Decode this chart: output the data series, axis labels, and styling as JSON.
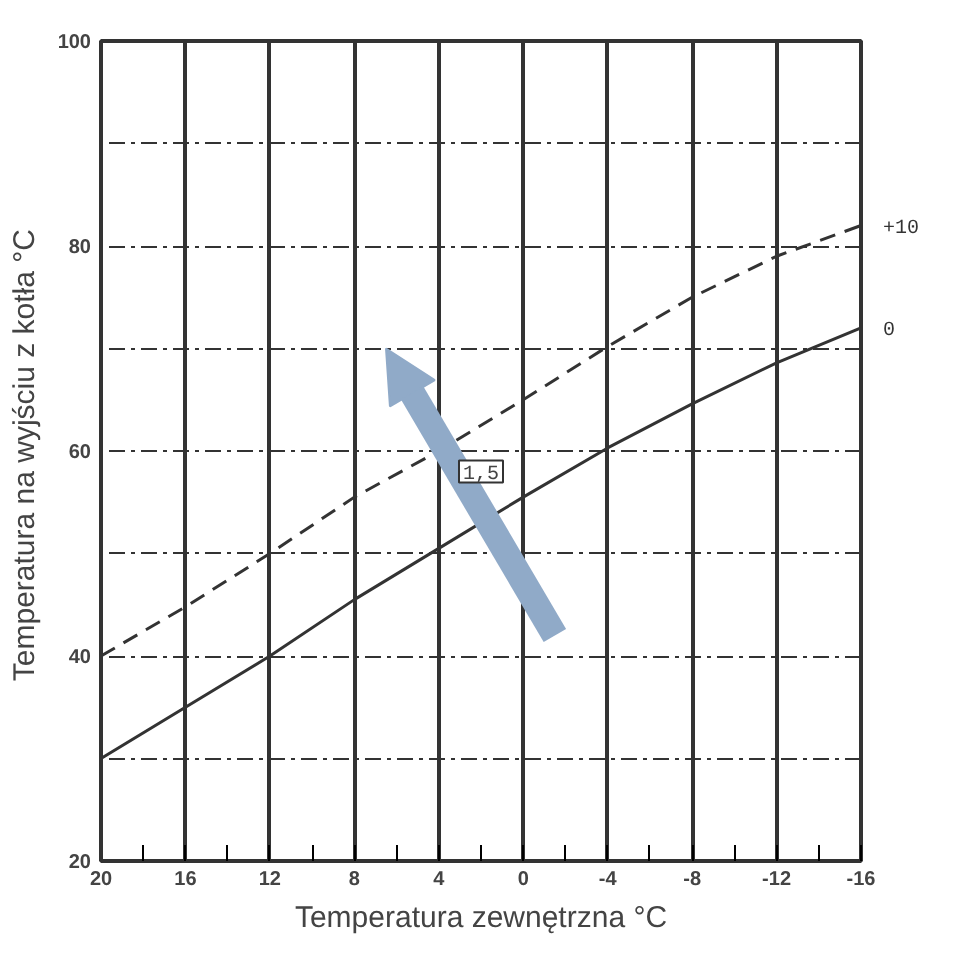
{
  "chart_data": {
    "type": "line",
    "xlabel": "Temperatura zewnętrzna °C",
    "ylabel": "Temperatura na wyjściu z kotła  °C",
    "x": [
      20,
      16,
      12,
      8,
      4,
      0,
      -4,
      -8,
      -12,
      -16
    ],
    "series": [
      {
        "name": "+10",
        "color": "#333333",
        "line_style": "dashed",
        "values": [
          40,
          44.8,
          50,
          55.5,
          60,
          65,
          70.2,
          75,
          79,
          82
        ]
      },
      {
        "name": "0",
        "color": "#333333",
        "line_style": "solid",
        "values": [
          30,
          35,
          40,
          45.5,
          50.5,
          55.5,
          60.3,
          64.6,
          68.6,
          72
        ]
      }
    ],
    "xlim": [
      20,
      -16
    ],
    "xticks": [
      20,
      {
        "value": 18,
        "label": null
      },
      16,
      {
        "value": 14,
        "label": null
      },
      12,
      {
        "value": 10,
        "label": null
      },
      8,
      {
        "value": 6,
        "label": null
      },
      4,
      {
        "value": 2,
        "label": null
      },
      0,
      {
        "value": -2,
        "label": null
      },
      -4,
      {
        "value": -6,
        "label": null
      },
      -8,
      {
        "value": -10,
        "label": null
      },
      -12,
      {
        "value": -14,
        "label": null
      },
      -16
    ],
    "ylim": [
      20,
      100
    ],
    "yticks": [
      20,
      {
        "value": 30,
        "label": null
      },
      40,
      {
        "value": 50,
        "label": null
      },
      60,
      {
        "value": 70,
        "label": null
      },
      80,
      {
        "value": 90,
        "label": null
      },
      100
    ],
    "annotations": [
      {
        "text": "1,5",
        "x": 2,
        "y": 58
      }
    ],
    "grid": true,
    "marker": "none"
  }
}
